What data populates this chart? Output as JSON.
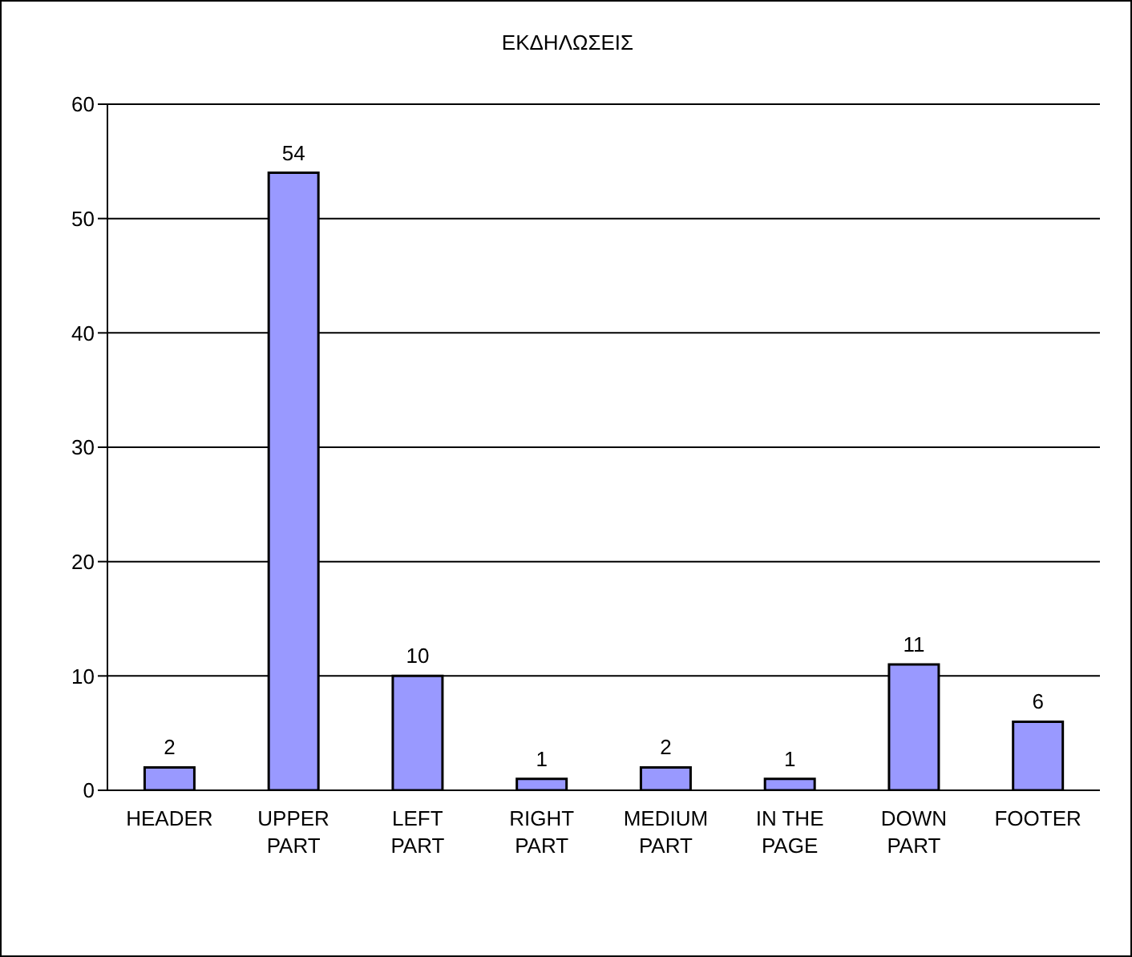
{
  "chart_data": {
    "type": "bar",
    "title": "ΕΚΔΗΛΩΣΕΙΣ",
    "categories": [
      "HEADER",
      "UPPER PART",
      "LEFT PART",
      "RIGHT PART",
      "MEDIUM PART",
      "IN THE PAGE",
      "DOWN PART",
      "FOOTER"
    ],
    "values": [
      2,
      54,
      10,
      1,
      2,
      1,
      11,
      6
    ],
    "color": "#9999ff",
    "ylim": [
      0,
      60
    ],
    "yticks": [
      0,
      10,
      20,
      30,
      40,
      50,
      60
    ],
    "grid": "y",
    "data_labels": true
  }
}
